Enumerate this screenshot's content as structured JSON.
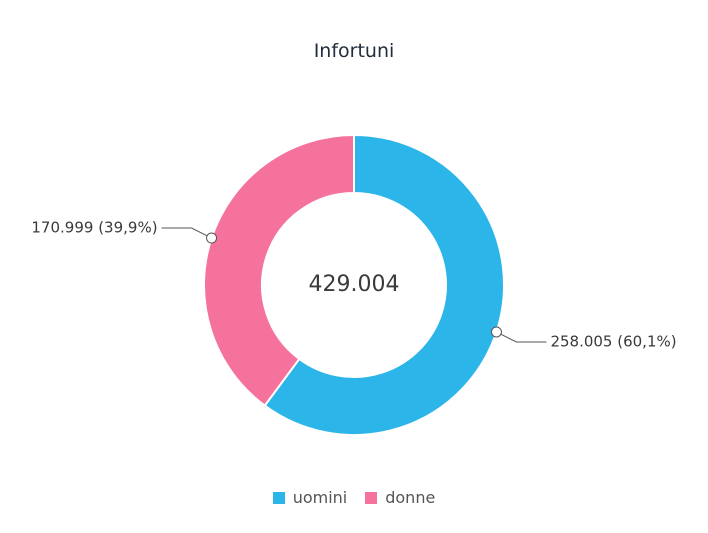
{
  "chart_data": {
    "type": "pie",
    "title": "Infortuni",
    "center_label": "429.004",
    "series": [
      {
        "name": "uomini",
        "value": 258005,
        "percent": 60.1,
        "label": "258.005 (60,1%)",
        "color": "#2cb5e8"
      },
      {
        "name": "donne",
        "value": 170999,
        "percent": 39.9,
        "label": "170.999 (39,9%)",
        "color": "#f4729b"
      }
    ],
    "legend": {
      "position": "bottom",
      "items": [
        "uomini",
        "donne"
      ]
    }
  }
}
